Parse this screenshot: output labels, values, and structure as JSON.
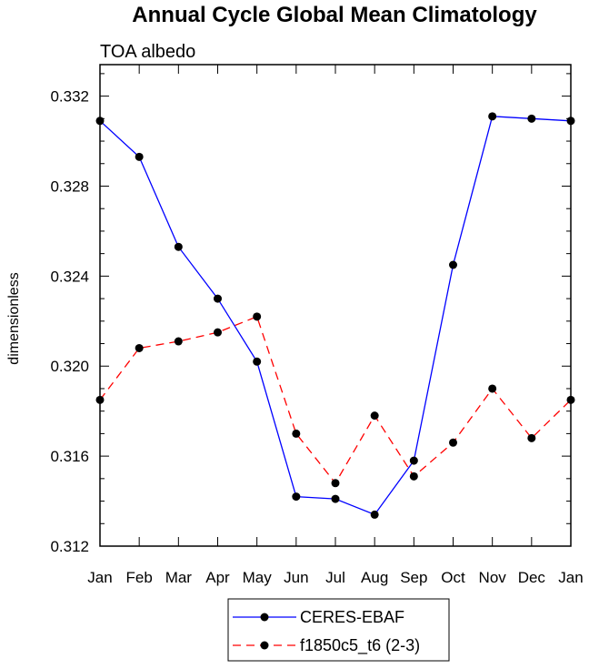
{
  "chart_data": {
    "type": "line",
    "title": "Annual Cycle Global Mean Climatology",
    "subtitle": "TOA albedo",
    "xlabel": "",
    "ylabel": "dimensionless",
    "categories": [
      "Jan",
      "Feb",
      "Mar",
      "Apr",
      "May",
      "Jun",
      "Jul",
      "Aug",
      "Sep",
      "Oct",
      "Nov",
      "Dec",
      "Jan"
    ],
    "yticks": [
      "0.312",
      "0.316",
      "0.320",
      "0.324",
      "0.328",
      "0.332"
    ],
    "ylim": [
      0.312,
      0.3334
    ],
    "grid": false,
    "legend_position": "bottom-center",
    "series": [
      {
        "name": "CERES-EBAF",
        "color": "#0000ff",
        "dash": "solid",
        "marker": "filled-circle",
        "values": [
          0.3309,
          0.3293,
          0.3253,
          0.323,
          0.3202,
          0.3142,
          0.3141,
          0.3134,
          0.3158,
          0.3245,
          0.3311,
          0.331,
          0.3309
        ]
      },
      {
        "name": "f1850c5_t6 (2-3)",
        "color": "#ff0000",
        "dash": "dashed",
        "marker": "filled-circle",
        "values": [
          0.3185,
          0.3208,
          0.3211,
          0.3215,
          0.3222,
          0.317,
          0.3148,
          0.3178,
          0.3151,
          0.3166,
          0.319,
          0.3168,
          0.3185
        ]
      }
    ]
  }
}
